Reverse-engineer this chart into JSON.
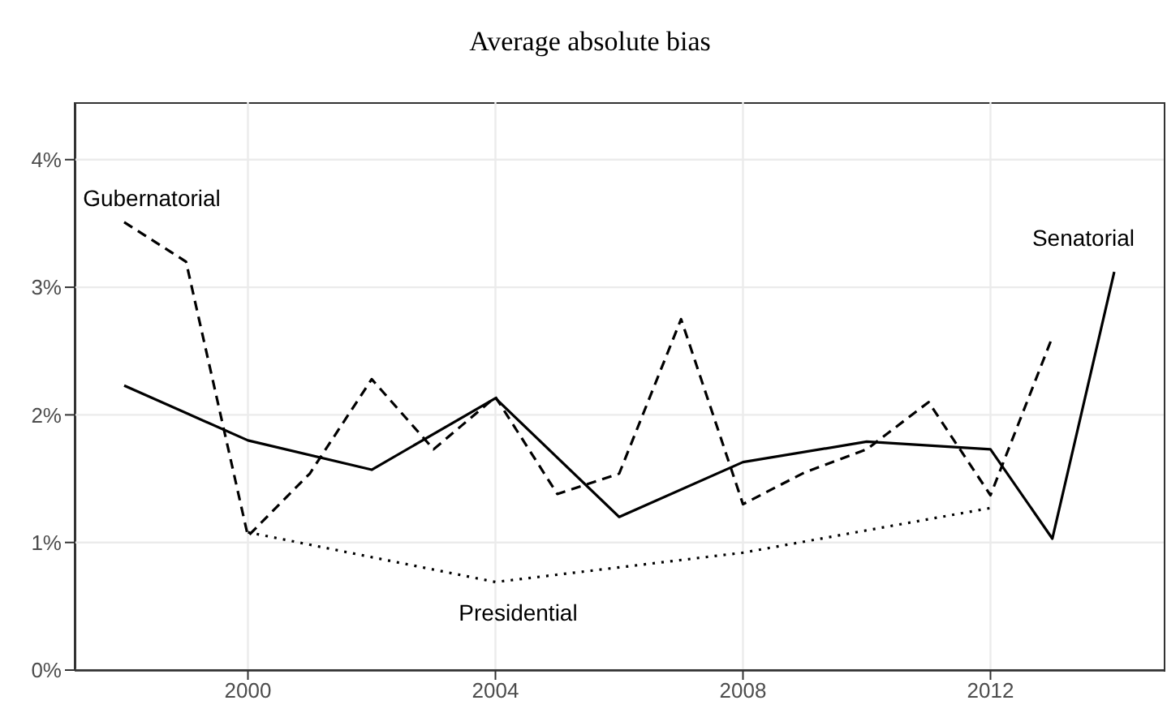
{
  "chart_data": {
    "type": "line",
    "title": "Average absolute bias",
    "xlim": [
      1997.2,
      2014.8
    ],
    "xticks": [
      2000,
      2004,
      2008,
      2012
    ],
    "ylim": [
      0,
      4.45
    ],
    "yticks": [
      {
        "value": 0,
        "label": "0%"
      },
      {
        "value": 1,
        "label": "1%"
      },
      {
        "value": 2,
        "label": "2%"
      },
      {
        "value": 3,
        "label": "3%"
      },
      {
        "value": 4,
        "label": "4%"
      }
    ],
    "grid": true,
    "legend": false,
    "marker": "none",
    "series": [
      {
        "name": "Gubernatorial",
        "color": "#000000",
        "line_style": "dashed",
        "x": [
          1998,
          1999,
          2000,
          2001,
          2002,
          2003,
          2004,
          2005,
          2006,
          2007,
          2008,
          2009,
          2010,
          2011,
          2012,
          2013
        ],
        "values": [
          3.51,
          3.2,
          1.05,
          1.54,
          2.28,
          1.73,
          2.14,
          1.38,
          1.54,
          2.75,
          1.3,
          1.55,
          1.73,
          2.1,
          1.37,
          2.61
        ]
      },
      {
        "name": "Senatorial",
        "color": "#000000",
        "line_style": "solid",
        "x": [
          1998,
          2000,
          2002,
          2004,
          2006,
          2008,
          2010,
          2012,
          2013,
          2014
        ],
        "values": [
          2.23,
          1.8,
          1.57,
          2.13,
          1.2,
          1.63,
          1.79,
          1.73,
          1.03,
          3.12
        ]
      },
      {
        "name": "Presidential",
        "color": "#000000",
        "line_style": "dotted",
        "x": [
          2000,
          2004,
          2008,
          2012
        ],
        "values": [
          1.08,
          0.69,
          0.92,
          1.27
        ]
      }
    ]
  }
}
